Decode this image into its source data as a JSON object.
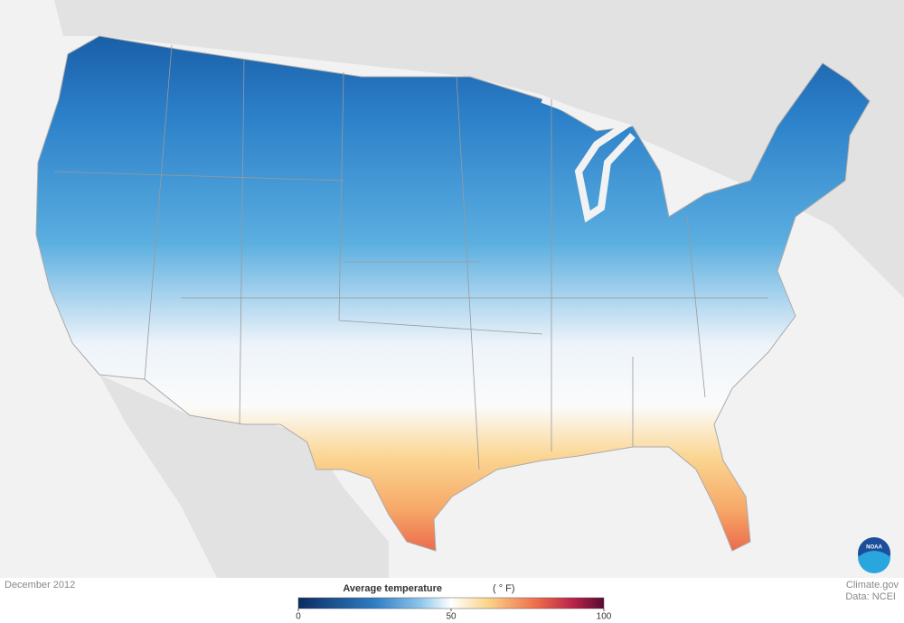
{
  "map": {
    "date": "December 2012",
    "legend": {
      "title": "Average temperature",
      "unit": "( ° F)",
      "range": [
        0,
        100
      ],
      "ticks": [
        0,
        50,
        100
      ]
    },
    "credits": {
      "site": "Climate.gov",
      "source": "Data: NCEI"
    },
    "logo": "NOAA"
  }
}
